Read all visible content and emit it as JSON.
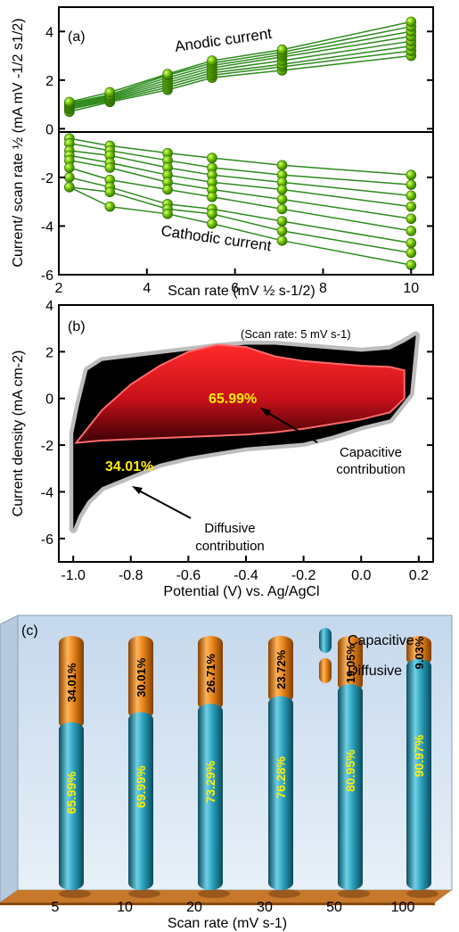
{
  "chart_data": [
    {
      "type": "line",
      "panel_label": "(a)",
      "xlabel": "Scan rate (mV ½ s-1/2)",
      "ylabel": "Current/ scan rate ½ (mA mV -1/2 s1/2)",
      "xlim": [
        2,
        10.5
      ],
      "ylim": [
        -6,
        5
      ],
      "x_ticks": [
        "2",
        "4",
        "6",
        "8",
        "10"
      ],
      "y_ticks": [
        "4",
        "2",
        "0",
        "-2",
        "-4",
        "-6"
      ],
      "annotations": [
        "Anodic current",
        "Cathodic current"
      ],
      "x": [
        2.24,
        3.16,
        4.47,
        5.48,
        7.07,
        10.0
      ],
      "anodic_series": [
        {
          "values": [
            0.7,
            1.1,
            1.6,
            2.1,
            2.4,
            3.0
          ]
        },
        {
          "values": [
            0.8,
            1.15,
            1.7,
            2.2,
            2.55,
            3.2
          ]
        },
        {
          "values": [
            0.85,
            1.2,
            1.8,
            2.3,
            2.65,
            3.4
          ]
        },
        {
          "values": [
            0.9,
            1.25,
            1.9,
            2.4,
            2.8,
            3.6
          ]
        },
        {
          "values": [
            0.95,
            1.3,
            2.0,
            2.5,
            2.95,
            3.8
          ]
        },
        {
          "values": [
            1.0,
            1.35,
            2.1,
            2.6,
            3.05,
            4.0
          ]
        },
        {
          "values": [
            1.05,
            1.4,
            2.2,
            2.7,
            3.15,
            4.2
          ]
        },
        {
          "values": [
            1.1,
            1.5,
            2.25,
            2.8,
            3.25,
            4.4
          ]
        }
      ],
      "cathodic_series": [
        {
          "values": [
            -0.4,
            -0.7,
            -1.0,
            -1.2,
            -1.5,
            -1.9
          ]
        },
        {
          "values": [
            -0.6,
            -0.9,
            -1.3,
            -1.6,
            -1.9,
            -2.3
          ]
        },
        {
          "values": [
            -0.9,
            -1.1,
            -1.6,
            -1.9,
            -2.2,
            -2.75
          ]
        },
        {
          "values": [
            -1.1,
            -1.4,
            -1.9,
            -2.2,
            -2.5,
            -3.2
          ]
        },
        {
          "values": [
            -1.3,
            -1.6,
            -2.2,
            -2.5,
            -2.9,
            -3.7
          ]
        },
        {
          "values": [
            -1.6,
            -2.1,
            -2.5,
            -2.8,
            -3.3,
            -4.2
          ]
        },
        {
          "values": [
            -2.0,
            -2.4,
            -3.1,
            -3.3,
            -3.8,
            -4.7
          ]
        },
        {
          "values": [
            -2.4,
            -2.6,
            -3.3,
            -3.5,
            -4.2,
            -5.1
          ]
        },
        {
          "values": [
            -2.4,
            -3.2,
            -3.5,
            -3.9,
            -4.6,
            -5.6
          ]
        }
      ],
      "marker_color": "#5aa800",
      "line_color": "#2e8b1e"
    },
    {
      "type": "area",
      "panel_label": "(b)",
      "xlabel": "Potential (V) vs. Ag/AgCl",
      "ylabel": "Current density (mA cm-2)",
      "xlim": [
        -1.05,
        0.25
      ],
      "ylim": [
        -7,
        4
      ],
      "x_ticks": [
        "-1.0",
        "-0.8",
        "-0.6",
        "-0.4",
        "-0.2",
        "0.0",
        "0.2"
      ],
      "y_ticks": [
        "4",
        "2",
        "0",
        "-2",
        "-4",
        "-6"
      ],
      "note": "(Scan rate: 5 mV s-1)",
      "capacitive_percent_label": "65.99%",
      "diffusive_percent_label": "34.01%",
      "capacitive_label_line1": "Capacitive",
      "capacitive_label_line2": "contribution",
      "diffusive_label_line1": "Diffusive",
      "diffusive_label_line2": "contribution",
      "total_upper": [
        [
          -1.0,
          -1.5
        ],
        [
          -0.98,
          -0.3
        ],
        [
          -0.95,
          1.2
        ],
        [
          -0.9,
          1.6
        ],
        [
          -0.8,
          1.75
        ],
        [
          -0.7,
          1.9
        ],
        [
          -0.6,
          2.05
        ],
        [
          -0.5,
          2.2
        ],
        [
          -0.4,
          2.3
        ],
        [
          -0.3,
          2.3
        ],
        [
          -0.2,
          2.2
        ],
        [
          -0.1,
          2.1
        ],
        [
          0.0,
          2.0
        ],
        [
          0.1,
          2.1
        ],
        [
          0.15,
          2.4
        ],
        [
          0.19,
          2.7
        ]
      ],
      "total_lower": [
        [
          0.19,
          2.7
        ],
        [
          0.17,
          0.2
        ],
        [
          0.1,
          -0.9
        ],
        [
          0.0,
          -1.2
        ],
        [
          -0.1,
          -1.6
        ],
        [
          -0.2,
          -1.9
        ],
        [
          -0.3,
          -2.0
        ],
        [
          -0.4,
          -2.1
        ],
        [
          -0.5,
          -2.3
        ],
        [
          -0.6,
          -2.5
        ],
        [
          -0.7,
          -2.8
        ],
        [
          -0.8,
          -3.3
        ],
        [
          -0.9,
          -3.8
        ],
        [
          -0.95,
          -4.4
        ],
        [
          -0.98,
          -5.0
        ],
        [
          -1.0,
          -5.6
        ]
      ],
      "capacitive_upper": [
        [
          -0.99,
          -1.9
        ],
        [
          -0.9,
          -0.5
        ],
        [
          -0.8,
          0.6
        ],
        [
          -0.7,
          1.4
        ],
        [
          -0.6,
          2.0
        ],
        [
          -0.5,
          2.3
        ],
        [
          -0.4,
          2.2
        ],
        [
          -0.3,
          1.8
        ],
        [
          -0.2,
          1.6
        ],
        [
          -0.1,
          1.5
        ],
        [
          0.0,
          1.4
        ],
        [
          0.1,
          1.35
        ],
        [
          0.15,
          1.2
        ]
      ],
      "capacitive_lower": [
        [
          0.15,
          1.2
        ],
        [
          0.15,
          0.0
        ],
        [
          0.1,
          -0.6
        ],
        [
          0.0,
          -0.9
        ],
        [
          -0.1,
          -1.1
        ],
        [
          -0.2,
          -1.3
        ],
        [
          -0.3,
          -1.45
        ],
        [
          -0.4,
          -1.55
        ],
        [
          -0.5,
          -1.6
        ],
        [
          -0.6,
          -1.65
        ],
        [
          -0.7,
          -1.7
        ],
        [
          -0.8,
          -1.75
        ],
        [
          -0.9,
          -1.8
        ],
        [
          -0.99,
          -1.9
        ]
      ],
      "colors": {
        "total": "#000000",
        "capacitive": "#e0141e",
        "outline": "#bdbdbd"
      }
    },
    {
      "type": "bar",
      "panel_label": "(c)",
      "xlabel": "Scan rate (mV s-1)",
      "categories": [
        "5",
        "10",
        "20",
        "30",
        "50",
        "100"
      ],
      "series": [
        {
          "name": "Capacitive",
          "values": [
            65.99,
            69.99,
            73.29,
            76.28,
            80.95,
            90.97
          ],
          "labels": [
            "65.99%",
            "69.99%",
            "73.29%",
            "76.28%",
            "80.95%",
            "90.97%"
          ]
        },
        {
          "name": "Diffusive",
          "values": [
            34.01,
            30.01,
            26.71,
            23.72,
            19.05,
            9.03
          ],
          "labels": [
            "34.01%",
            "30.01%",
            "26.71%",
            "23.72%",
            "19.05%",
            "9.03%"
          ]
        }
      ],
      "colors": {
        "capacitive": "#1e8aa8",
        "diffusive": "#e07a10",
        "background": "#d6e4f2",
        "floor": "#c8782a"
      },
      "legend_position": "top-right"
    }
  ]
}
